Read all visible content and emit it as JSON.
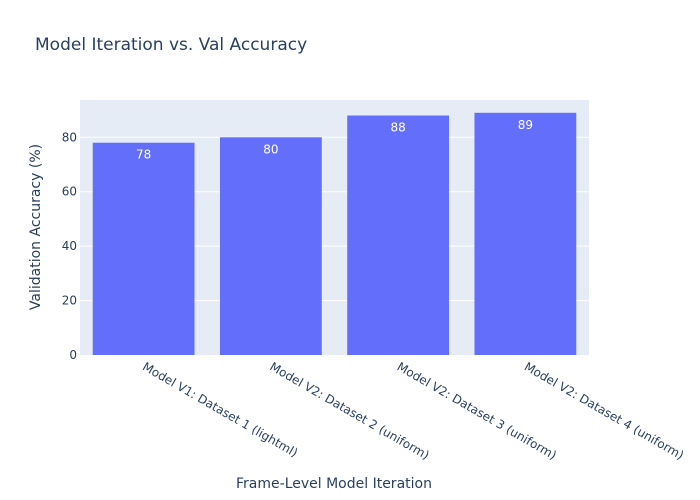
{
  "chart_data": {
    "type": "bar",
    "title": "Model Iteration vs. Val Accuracy",
    "xlabel": "Frame-Level Model Iteration",
    "ylabel": "Validation Accuracy (%)",
    "categories": [
      "Model V1: Dataset 1 (lightml)",
      "Model V2: Dataset 2 (uniform)",
      "Model V2: Dataset 3 (uniform)",
      "Model V2: Dataset 4 (uniform)"
    ],
    "values": [
      78,
      80,
      88,
      89
    ],
    "value_labels": [
      "78",
      "80",
      "88",
      "89"
    ],
    "ylim": [
      0,
      93.7
    ],
    "yticks": [
      0,
      20,
      40,
      60,
      80
    ],
    "ytick_labels": [
      "0",
      "20",
      "40",
      "60",
      "80"
    ],
    "grid": true,
    "legend": "none",
    "colors": {
      "bar": "#636efa",
      "plot_background": "#e5ecf6",
      "gridline": "#ffffff",
      "text": "#2a3f5f"
    }
  }
}
